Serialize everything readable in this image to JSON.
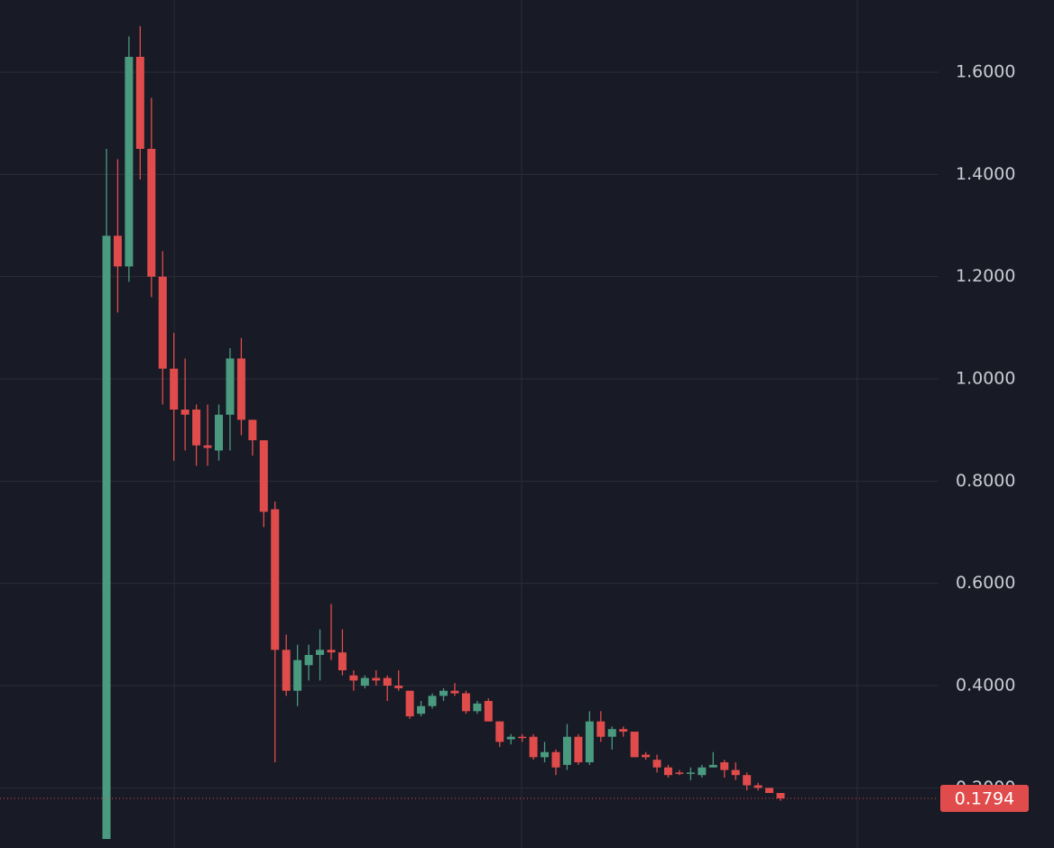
{
  "chart_data": {
    "type": "candlestick",
    "open": [
      0.1,
      1.28,
      1.22,
      1.63,
      1.45,
      1.2,
      1.02,
      0.94,
      0.94,
      0.87,
      0.86,
      0.93,
      1.04,
      0.92,
      0.88,
      0.745,
      0.47,
      0.39,
      0.44,
      0.46,
      0.47,
      0.465,
      0.42,
      0.4,
      0.415,
      0.415,
      0.4,
      0.39,
      0.345,
      0.36,
      0.38,
      0.39,
      0.385,
      0.35,
      0.37,
      0.33,
      0.295,
      0.3,
      0.3,
      0.26,
      0.27,
      0.245,
      0.3,
      0.25,
      0.33,
      0.3,
      0.315,
      0.31,
      0.265,
      0.255,
      0.24,
      0.23,
      0.228,
      0.225,
      0.24,
      0.25,
      0.235,
      0.225,
      0.205,
      0.2,
      0.19
    ],
    "high": [
      1.45,
      1.43,
      1.67,
      1.69,
      1.55,
      1.25,
      1.09,
      1.04,
      0.95,
      0.95,
      0.95,
      1.06,
      1.08,
      0.92,
      0.88,
      0.76,
      0.5,
      0.48,
      0.48,
      0.51,
      0.56,
      0.51,
      0.43,
      0.42,
      0.43,
      0.42,
      0.43,
      0.39,
      0.37,
      0.385,
      0.395,
      0.405,
      0.39,
      0.37,
      0.375,
      0.33,
      0.305,
      0.305,
      0.305,
      0.29,
      0.275,
      0.325,
      0.305,
      0.35,
      0.35,
      0.32,
      0.32,
      0.31,
      0.27,
      0.265,
      0.245,
      0.235,
      0.24,
      0.245,
      0.27,
      0.255,
      0.25,
      0.23,
      0.21,
      0.2,
      0.19
    ],
    "low": [
      0.1,
      1.13,
      1.19,
      1.39,
      1.16,
      0.95,
      0.84,
      0.86,
      0.83,
      0.83,
      0.84,
      0.86,
      0.89,
      0.85,
      0.71,
      0.25,
      0.38,
      0.36,
      0.41,
      0.41,
      0.45,
      0.42,
      0.39,
      0.395,
      0.4,
      0.37,
      0.39,
      0.335,
      0.34,
      0.355,
      0.37,
      0.38,
      0.345,
      0.345,
      0.33,
      0.28,
      0.285,
      0.29,
      0.255,
      0.25,
      0.225,
      0.235,
      0.245,
      0.245,
      0.29,
      0.275,
      0.3,
      0.26,
      0.255,
      0.23,
      0.22,
      0.225,
      0.215,
      0.22,
      0.24,
      0.22,
      0.215,
      0.195,
      0.195,
      0.19,
      0.175
    ],
    "close": [
      1.28,
      1.22,
      1.63,
      1.45,
      1.2,
      1.02,
      0.94,
      0.93,
      0.87,
      0.865,
      0.93,
      1.04,
      0.92,
      0.88,
      0.74,
      0.47,
      0.39,
      0.45,
      0.46,
      0.47,
      0.465,
      0.43,
      0.41,
      0.415,
      0.41,
      0.4,
      0.395,
      0.34,
      0.36,
      0.38,
      0.39,
      0.385,
      0.35,
      0.365,
      0.33,
      0.29,
      0.3,
      0.298,
      0.26,
      0.27,
      0.24,
      0.3,
      0.25,
      0.33,
      0.3,
      0.315,
      0.31,
      0.26,
      0.26,
      0.24,
      0.225,
      0.228,
      0.23,
      0.24,
      0.245,
      0.235,
      0.225,
      0.205,
      0.2,
      0.19,
      0.1794
    ],
    "up_color": "#4a9a80",
    "down_color": "#e04c4c",
    "ylim": [
      0.0824,
      1.7412
    ],
    "yticks": [
      {
        "value": 0.2,
        "label": "0.2000"
      },
      {
        "value": 0.4,
        "label": "0.4000"
      },
      {
        "value": 0.6,
        "label": "0.6000"
      },
      {
        "value": 0.8,
        "label": "0.8000"
      },
      {
        "value": 1.0,
        "label": "1.0000"
      },
      {
        "value": 1.2,
        "label": "1.2000"
      },
      {
        "value": 1.4,
        "label": "1.4000"
      },
      {
        "value": 1.6,
        "label": "1.6000"
      }
    ],
    "grid": true
  }
}
